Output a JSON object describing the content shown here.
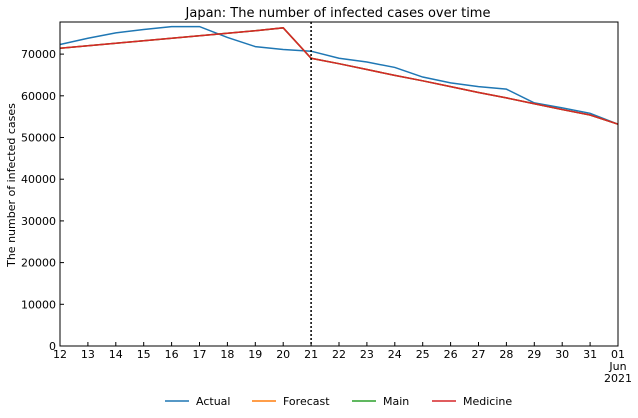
{
  "chart_data": {
    "type": "line",
    "title": "Japan: The number of infected cases over time",
    "xlabel": "",
    "ylabel": "The number of infected cases",
    "x": [
      "2021-05-12",
      "2021-05-13",
      "2021-05-14",
      "2021-05-15",
      "2021-05-16",
      "2021-05-17",
      "2021-05-18",
      "2021-05-19",
      "2021-05-20",
      "2021-05-21",
      "2021-05-22",
      "2021-05-23",
      "2021-05-24",
      "2021-05-25",
      "2021-05-26",
      "2021-05-27",
      "2021-05-28",
      "2021-05-29",
      "2021-05-30",
      "2021-05-31",
      "2021-06-01"
    ],
    "x_tick_labels": [
      "12",
      "13",
      "14",
      "15",
      "16",
      "17",
      "18",
      "19",
      "20",
      "21",
      "22",
      "23",
      "24",
      "25",
      "26",
      "27",
      "28",
      "29",
      "30",
      "31",
      "01"
    ],
    "x_tick_sublabels": [
      "Jun",
      "2021"
    ],
    "ylim": [
      0,
      77700
    ],
    "y_ticks": [
      0,
      10000,
      20000,
      30000,
      40000,
      50000,
      60000,
      70000
    ],
    "y_tick_labels": [
      "0",
      "10000",
      "20000",
      "30000",
      "40000",
      "50000",
      "60000",
      "70000"
    ],
    "vline_x": "2021-05-21",
    "grid": false,
    "legend_position": "bottom",
    "series": [
      {
        "name": "Actual",
        "color": "#1f77b4",
        "values": [
          72300,
          73800,
          75100,
          75900,
          76600,
          76600,
          74000,
          71800,
          71100,
          70700,
          69000,
          68100,
          66800,
          64500,
          63100,
          62200,
          61600,
          58300,
          57100,
          55800,
          53200
        ]
      },
      {
        "name": "Forecast",
        "color": "#ff7f0e",
        "values": [
          71400,
          72000,
          72600,
          73200,
          73800,
          74400,
          75000,
          75600,
          76300,
          69000,
          67700,
          66300,
          64900,
          63600,
          62200,
          60800,
          59500,
          58100,
          56700,
          55400,
          53200
        ]
      },
      {
        "name": "Main",
        "color": "#2ca02c",
        "values": [
          71400,
          72000,
          72600,
          73200,
          73800,
          74400,
          75000,
          75600,
          76300,
          69000,
          67700,
          66300,
          64900,
          63600,
          62200,
          60800,
          59500,
          58100,
          56700,
          55400,
          53200
        ]
      },
      {
        "name": "Medicine",
        "color": "#d62728",
        "values": [
          71400,
          72000,
          72600,
          73200,
          73800,
          74400,
          75000,
          75600,
          76300,
          69000,
          67700,
          66300,
          64900,
          63600,
          62200,
          60800,
          59500,
          58100,
          56700,
          55400,
          53200
        ]
      }
    ]
  }
}
